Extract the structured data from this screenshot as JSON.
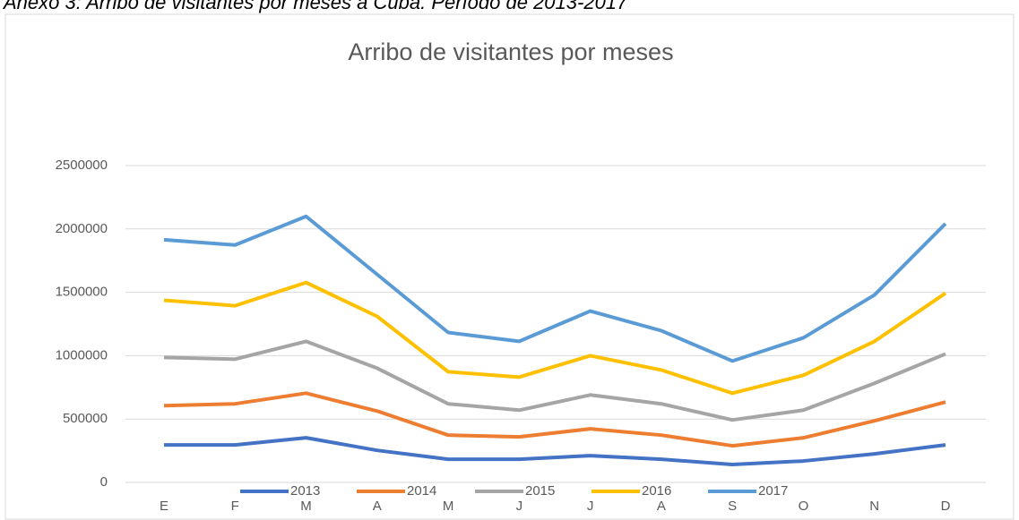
{
  "caption": "Anexo 3: Arribo de visitantes por meses a Cuba. Período de 2013-2017",
  "chart_data": {
    "type": "line",
    "stacked": true,
    "title": "Arribo de visitantes  por meses",
    "categories": [
      "E",
      "F",
      "M",
      "A",
      "M",
      "J",
      "J",
      "A",
      "S",
      "O",
      "N",
      "D"
    ],
    "series": [
      {
        "name": "2013",
        "color": "#4472c4",
        "values": [
          296000,
          296000,
          352000,
          253000,
          183000,
          183000,
          211000,
          183000,
          141000,
          169000,
          225000,
          296000
        ]
      },
      {
        "name": "2014",
        "color": "#ed7d31",
        "values": [
          310000,
          324000,
          352000,
          310000,
          190000,
          176000,
          212000,
          190000,
          148000,
          183000,
          261000,
          338000
        ]
      },
      {
        "name": "2015",
        "color": "#a5a5a5",
        "values": [
          380000,
          352000,
          409000,
          338000,
          247000,
          211000,
          267000,
          247000,
          204000,
          218000,
          296000,
          380000
        ]
      },
      {
        "name": "2016",
        "color": "#ffc000",
        "values": [
          451000,
          422000,
          464000,
          409000,
          253000,
          261000,
          310000,
          267000,
          211000,
          275000,
          331000,
          479000
        ]
      },
      {
        "name": "2017",
        "color": "#5b9bd5",
        "values": [
          478000,
          479000,
          522000,
          331000,
          310000,
          282000,
          352000,
          310000,
          254000,
          296000,
          366000,
          549000
        ]
      }
    ],
    "ylim": [
      0,
      2500000
    ],
    "yticks": [
      0,
      500000,
      1000000,
      1500000,
      2000000,
      2500000
    ],
    "grid": true,
    "legend": "bottom"
  }
}
